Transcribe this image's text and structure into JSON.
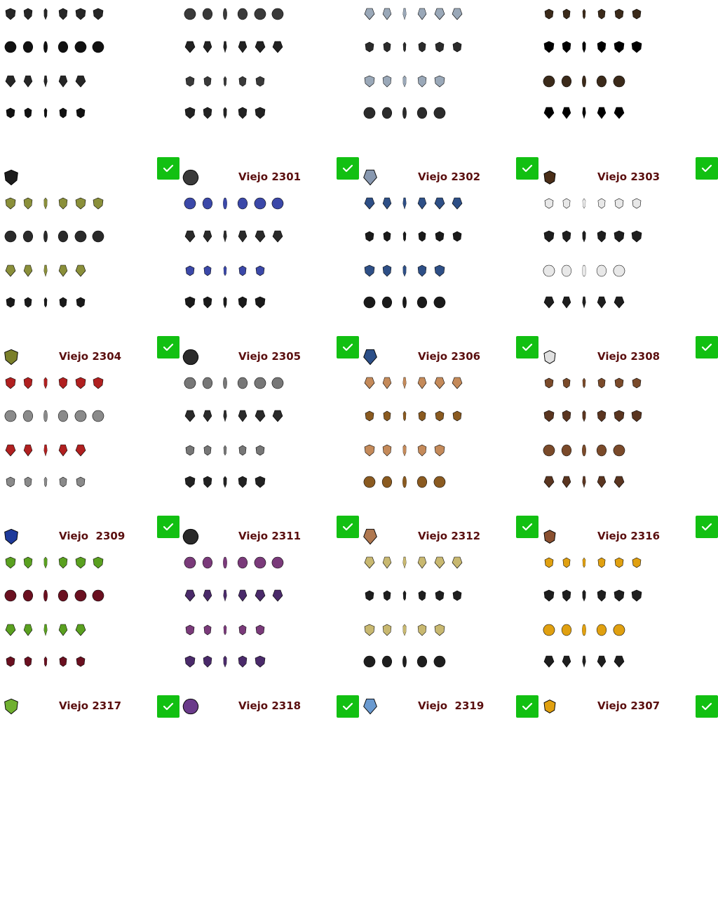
{
  "grid": {
    "cols": 4,
    "rows": 5,
    "cells": [
      {
        "label": "",
        "checked": false,
        "sprite": "dark-spiked-shield",
        "fill": "#262626",
        "accent": "#111111"
      },
      {
        "label": "",
        "checked": false,
        "sprite": "round-studded-shield",
        "fill": "#3a3a3a",
        "accent": "#222222"
      },
      {
        "label": "",
        "checked": false,
        "sprite": "silver-crest-shield",
        "fill": "#9aa8b8",
        "accent": "#2b2b2b"
      },
      {
        "label": "",
        "checked": false,
        "sprite": "brown-scale-shield",
        "fill": "#3b2a1a",
        "accent": "#000000"
      },
      {
        "label": "",
        "checked": true,
        "sprite": "dark-dragon-shield",
        "fill": "#1c1c1c",
        "accent": "#1c1c1c",
        "rowsFill": [
          "#8a8f3a",
          "#2a2a2a",
          "#8a8f3a",
          "#1a1a1a"
        ]
      },
      {
        "label": "Viejo 2301",
        "checked": true,
        "sprite": "round-studded-shield",
        "fill": "#3a3a3a",
        "accent": "#3a3a3a",
        "rowsFill": [
          "#3b48a8",
          "#2a2a2a",
          "#3b48a8",
          "#1a1a1a"
        ]
      },
      {
        "label": "Viejo 2302",
        "checked": true,
        "sprite": "silver-crest-shield",
        "fill": "#8898b0",
        "accent": "#8898b0",
        "rowsFill": [
          "#2e4f86",
          "#1a1a1a",
          "#2e4f86",
          "#1a1a1a"
        ]
      },
      {
        "label": "Viejo 2303",
        "checked": true,
        "sprite": "brown-scale-shield",
        "fill": "#4a2e18",
        "accent": "#4a2e18",
        "rowsFill": [
          "#e8e8e8",
          "#1e1e1e",
          "#e8e8e8",
          "#1e1e1e"
        ]
      },
      {
        "label": "Viejo 2304",
        "checked": true,
        "sprite": "plaid-tower-shield",
        "fill": "#7a7f2a",
        "accent": "#7a7f2a",
        "rowsFill": [
          "#b02020",
          "#8a8a8a",
          "#b02020",
          "#8a8a8a"
        ]
      },
      {
        "label": "Viejo 2305",
        "checked": true,
        "sprite": "blue-gem-tower-shield",
        "fill": "#2b2b2b",
        "accent": "#2b2b2b",
        "rowsFill": [
          "#777777",
          "#2a2a2a",
          "#777777",
          "#222222"
        ]
      },
      {
        "label": "Viejo 2306",
        "checked": true,
        "sprite": "blue-heater-shield",
        "fill": "#2c4f88",
        "accent": "#2c4f88",
        "rowsFill": [
          "#c48a5a",
          "#8a5a20",
          "#c48a5a",
          "#8a5a20"
        ]
      },
      {
        "label": "Viejo 2308",
        "checked": true,
        "sprite": "white-cross-shield",
        "fill": "#e0e0e0",
        "accent": "#e0e0e0",
        "rowsFill": [
          "#7a4a2a",
          "#5a3520",
          "#7a4a2a",
          "#5a3520"
        ]
      },
      {
        "label": "Viejo  2309",
        "checked": true,
        "sprite": "red-cross-shield",
        "fill": "#1e3a9a",
        "accent": "#1e3a9a",
        "rowsFill": [
          "#5aa020",
          "#6a1020",
          "#5aa020",
          "#6a1020"
        ]
      },
      {
        "label": "Viejo 2311",
        "checked": true,
        "sprite": "chain-shield",
        "fill": "#2a2a2a",
        "accent": "#2a2a2a",
        "rowsFill": [
          "#7a3a7a",
          "#4a2a6a",
          "#7a3a7a",
          "#4a2a6a"
        ]
      },
      {
        "label": "Viejo 2312",
        "checked": true,
        "sprite": "knotted-leather-shield",
        "fill": "#b07850",
        "accent": "#b07850",
        "rowsFill": [
          "#c8b870",
          "#1e1e1e",
          "#c8b870",
          "#1e1e1e"
        ]
      },
      {
        "label": "Viejo 2316",
        "checked": true,
        "sprite": "round-wood-shield",
        "fill": "#8a5030",
        "accent": "#8a5030",
        "rowsFill": [
          "#e0a010",
          "#1e1e1e",
          "#e0a010",
          "#1e1e1e"
        ]
      },
      {
        "label": "Viejo 2317",
        "checked": true,
        "sprite": "green-swirl-shield",
        "fill": "#70b030",
        "accent": "#70b030"
      },
      {
        "label": "Viejo 2318",
        "checked": true,
        "sprite": "purple-kite-shield",
        "fill": "#6a3a8a",
        "accent": "#6a3a8a"
      },
      {
        "label": "Viejo  2319",
        "checked": true,
        "sprite": "quartered-heater-shield",
        "fill": "#6a9ad0",
        "accent": "#e0c040"
      },
      {
        "label": "Viejo 2307",
        "checked": true,
        "sprite": "gold-heater-shield",
        "fill": "#e0a010",
        "accent": "#e0a010"
      }
    ]
  },
  "checkmark_color": "#12c012",
  "label_color": "#5a0f0f"
}
